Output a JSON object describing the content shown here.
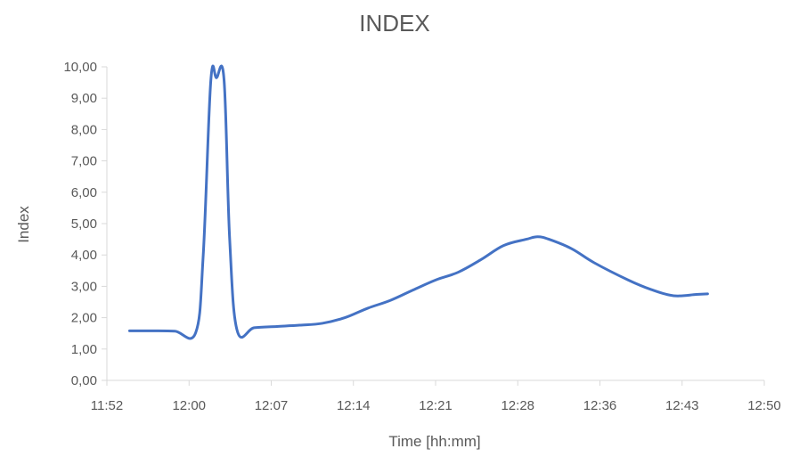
{
  "chart_data": {
    "type": "line",
    "title": "INDEX",
    "xlabel": "Time [hh:mm]",
    "ylabel": "Index",
    "x_tick_labels": [
      "11:52",
      "12:00",
      "12:07",
      "12:14",
      "12:21",
      "12:28",
      "12:36",
      "12:43",
      "12:50"
    ],
    "y_tick_labels": [
      "0,00",
      "1,00",
      "2,00",
      "3,00",
      "4,00",
      "5,00",
      "6,00",
      "7,00",
      "8,00",
      "9,00",
      "10,00"
    ],
    "ylim": [
      0,
      10
    ],
    "xlim": [
      "11:52",
      "12:50"
    ],
    "grid": false,
    "legend": "none",
    "line_color": "#4472C4",
    "series": [
      {
        "x": [
          "11:54:00",
          "11:56:00",
          "11:58:00",
          "11:59:50",
          "12:00:30",
          "12:01:10",
          "12:01:40",
          "12:02:20",
          "12:02:50",
          "12:03:30",
          "12:05:00",
          "12:07:00",
          "12:09:00",
          "12:11:00",
          "12:13:00",
          "12:15:00",
          "12:17:00",
          "12:19:00",
          "12:21:00",
          "12:23:00",
          "12:25:00",
          "12:27:00",
          "12:29:00",
          "12:30:00",
          "12:31:00",
          "12:33:00",
          "12:35:00",
          "12:38:00",
          "12:40:00",
          "12:42:00",
          "12:44:00",
          "12:45:00"
        ],
        "values": [
          1.58,
          1.58,
          1.57,
          1.52,
          4.0,
          9.55,
          9.65,
          9.6,
          4.5,
          1.58,
          1.68,
          1.72,
          1.76,
          1.82,
          2.0,
          2.3,
          2.55,
          2.88,
          3.2,
          3.45,
          3.85,
          4.3,
          4.5,
          4.58,
          4.5,
          4.2,
          3.75,
          3.2,
          2.9,
          2.7,
          2.74,
          2.76
        ]
      }
    ]
  }
}
